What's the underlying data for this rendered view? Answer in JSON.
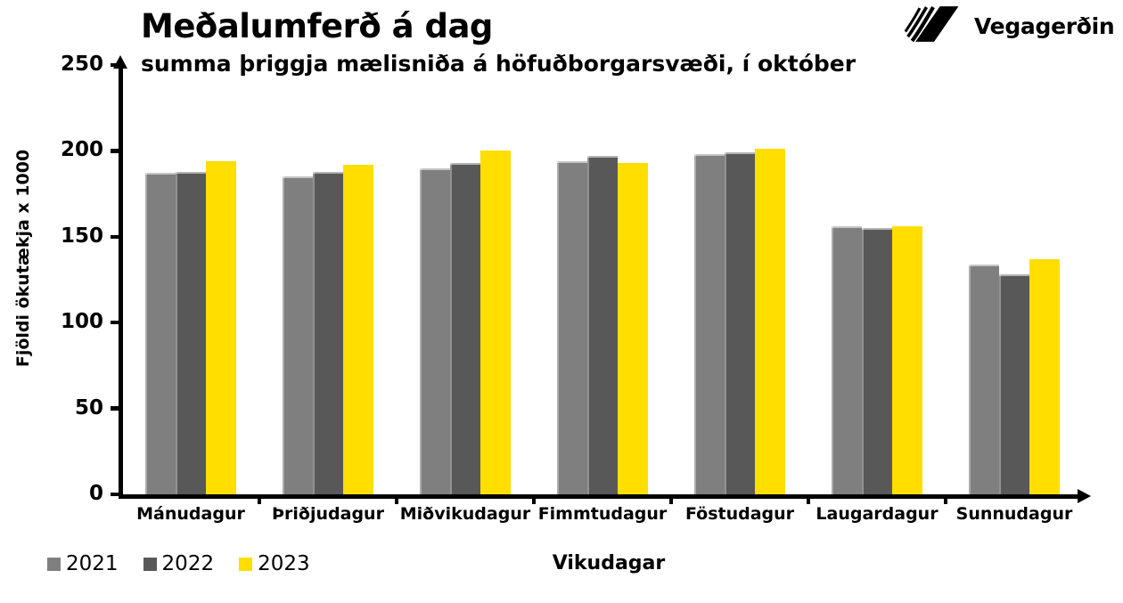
{
  "header": {
    "title": "Meðalumferð á dag",
    "subtitle": "summa þriggja mælisniða á höfuðborgarsvæði, í október"
  },
  "logo": {
    "brand": "Vegagerðin",
    "icon": "vegagerdin-tread-mark-icon"
  },
  "colors": {
    "background": "#ffffff",
    "text": "#000000",
    "axis": "#000000",
    "accent_yellow": "#ffde00"
  },
  "chart_data": {
    "type": "bar",
    "title": "Meðalumferð á dag",
    "subtitle": "summa þriggja mælisniða á höfuðborgarsvæði, í október",
    "xlabel": "Vikudagar",
    "ylabel": "Fjöldi ökutækja x 1000",
    "ylim": [
      0,
      250
    ],
    "yticks": [
      0,
      50,
      100,
      150,
      200,
      250
    ],
    "grid": false,
    "legend_position": "bottom-left",
    "categories": [
      "Mánudagur",
      "Þriðjudagur",
      "Miðvikudagur",
      "Fimmtudagur",
      "Föstudagur",
      "Laugardagur",
      "Sunnudagur"
    ],
    "series": [
      {
        "name": "2021",
        "color": "#7f7f7f",
        "values": [
          187,
          185,
          190,
          194,
          198,
          156,
          134
        ]
      },
      {
        "name": "2022",
        "color": "#585858",
        "values": [
          188,
          188,
          193,
          197,
          199,
          155,
          128
        ]
      },
      {
        "name": "2023",
        "color": "#ffde00",
        "values": [
          194,
          192,
          200,
          193,
          201,
          156,
          137
        ]
      }
    ]
  }
}
